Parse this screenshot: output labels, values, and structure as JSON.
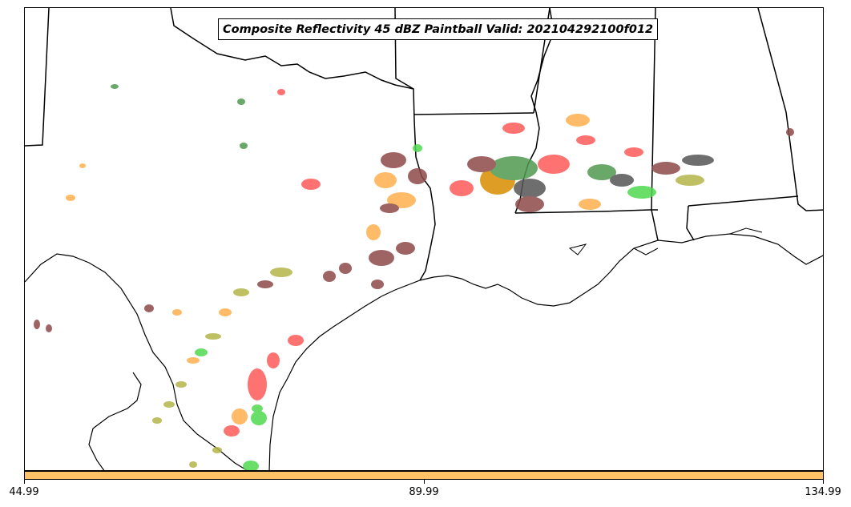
{
  "title": "Composite Reflectivity 45 dBZ Paintball Valid: 202104292100f012",
  "colorbar": {
    "color": "#ffc266",
    "ticks": [
      "44.99",
      "89.99",
      "134.99"
    ]
  },
  "colors": {
    "member_red": "#ff5a5a",
    "member_orange": "#ffb04d",
    "member_green": "#4fd94f",
    "member_darkgreen": "#4f9a4f",
    "member_olive": "#b5b54a",
    "member_brown": "#8e4a4a",
    "member_gray": "#555555",
    "member_darkorange": "#d98c00"
  }
}
